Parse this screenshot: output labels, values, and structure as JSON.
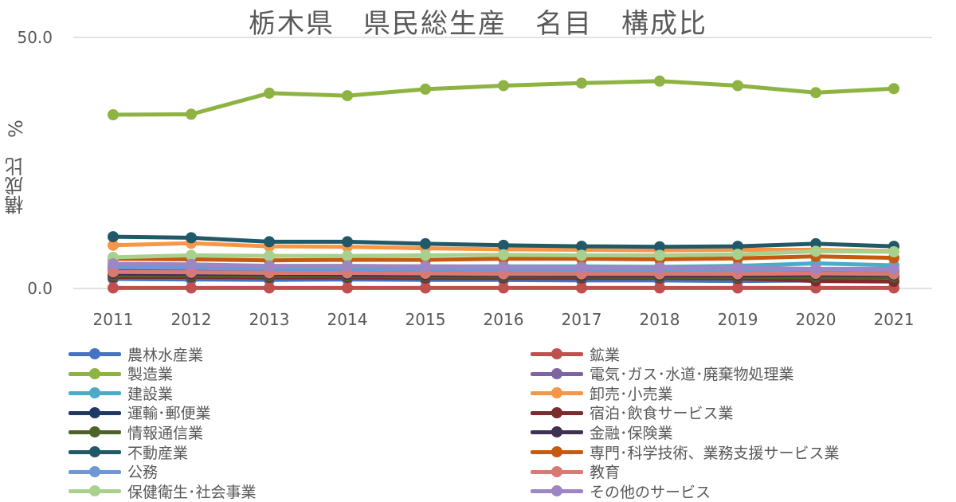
{
  "chart_data": {
    "type": "line",
    "title": "栃木県　県民総生産　名目　構成比",
    "ylabel": "構成比　%",
    "xlabel": "",
    "ylim": [
      0,
      50
    ],
    "y_ticks": [
      "0.0",
      "50.0"
    ],
    "grid": "horizontal",
    "legend_position": "bottom",
    "categories": [
      "2011",
      "2012",
      "2013",
      "2014",
      "2015",
      "2016",
      "2017",
      "2018",
      "2019",
      "2020",
      "2021"
    ],
    "series": [
      {
        "name": "農林水産業",
        "color": "#4472C4",
        "values": [
          1.9,
          1.8,
          1.7,
          1.8,
          1.7,
          1.7,
          1.6,
          1.6,
          1.5,
          1.6,
          1.5
        ]
      },
      {
        "name": "鉱業",
        "color": "#C0504D",
        "values": [
          0.1,
          0.1,
          0.1,
          0.1,
          0.1,
          0.1,
          0.1,
          0.1,
          0.1,
          0.1,
          0.1
        ]
      },
      {
        "name": "製造業",
        "color": "#8DB342",
        "values": [
          34.6,
          34.7,
          38.9,
          38.4,
          39.7,
          40.4,
          40.9,
          41.3,
          40.4,
          39.0,
          39.8
        ]
      },
      {
        "name": "電気･ガス･水道･廃棄物処理業",
        "color": "#8064A2",
        "values": [
          3.6,
          3.6,
          3.5,
          3.5,
          3.3,
          3.2,
          3.3,
          3.1,
          3.0,
          3.2,
          3.1
        ]
      },
      {
        "name": "建設業",
        "color": "#4BACC6",
        "values": [
          4.6,
          4.5,
          4.4,
          4.4,
          4.4,
          4.4,
          4.4,
          4.3,
          4.5,
          5.0,
          4.6
        ]
      },
      {
        "name": "卸売･小売業",
        "color": "#F79646",
        "values": [
          8.6,
          9.0,
          8.4,
          8.3,
          8.0,
          7.8,
          7.7,
          7.6,
          7.7,
          7.7,
          7.4
        ]
      },
      {
        "name": "運輸･郵便業",
        "color": "#1F3864",
        "values": [
          4.1,
          4.1,
          4.0,
          4.0,
          3.9,
          3.8,
          3.9,
          3.9,
          3.8,
          3.4,
          3.4
        ]
      },
      {
        "name": "宿泊･飲食サービス業",
        "color": "#7B2C2C",
        "values": [
          2.3,
          2.3,
          2.2,
          2.2,
          2.1,
          2.1,
          2.1,
          2.1,
          2.0,
          1.5,
          1.4
        ]
      },
      {
        "name": "情報通信業",
        "color": "#4F6228",
        "values": [
          2.6,
          2.6,
          2.5,
          2.5,
          2.4,
          2.4,
          2.4,
          2.3,
          2.3,
          2.3,
          2.3
        ]
      },
      {
        "name": "金融･保険業",
        "color": "#3F3151",
        "values": [
          3.0,
          2.9,
          2.9,
          2.8,
          2.7,
          2.7,
          2.6,
          2.6,
          2.6,
          2.7,
          2.7
        ]
      },
      {
        "name": "不動産業",
        "color": "#215968",
        "values": [
          10.3,
          10.1,
          9.3,
          9.3,
          8.9,
          8.6,
          8.4,
          8.3,
          8.4,
          8.9,
          8.4
        ]
      },
      {
        "name": "専門･科学技術、業務支援サービス業",
        "color": "#C55A11",
        "values": [
          5.9,
          5.8,
          5.6,
          5.7,
          5.7,
          5.9,
          5.9,
          5.8,
          6.0,
          6.4,
          6.1
        ]
      },
      {
        "name": "公務",
        "color": "#6F97D6",
        "values": [
          4.2,
          4.1,
          3.9,
          3.9,
          3.8,
          3.7,
          3.7,
          3.6,
          3.6,
          3.8,
          3.7
        ]
      },
      {
        "name": "教育",
        "color": "#D87A73",
        "values": [
          3.3,
          3.2,
          3.1,
          3.1,
          3.0,
          2.9,
          2.9,
          2.9,
          2.9,
          3.0,
          2.9
        ]
      },
      {
        "name": "保健衛生･社会事業",
        "color": "#A9D18E",
        "values": [
          6.2,
          6.6,
          6.5,
          6.5,
          6.6,
          6.7,
          6.6,
          6.6,
          6.8,
          7.4,
          7.3
        ]
      },
      {
        "name": "その他のサービス",
        "color": "#9E86C4",
        "values": [
          4.9,
          4.8,
          4.5,
          4.5,
          4.4,
          4.3,
          4.2,
          4.1,
          4.1,
          3.9,
          3.9
        ]
      }
    ]
  }
}
